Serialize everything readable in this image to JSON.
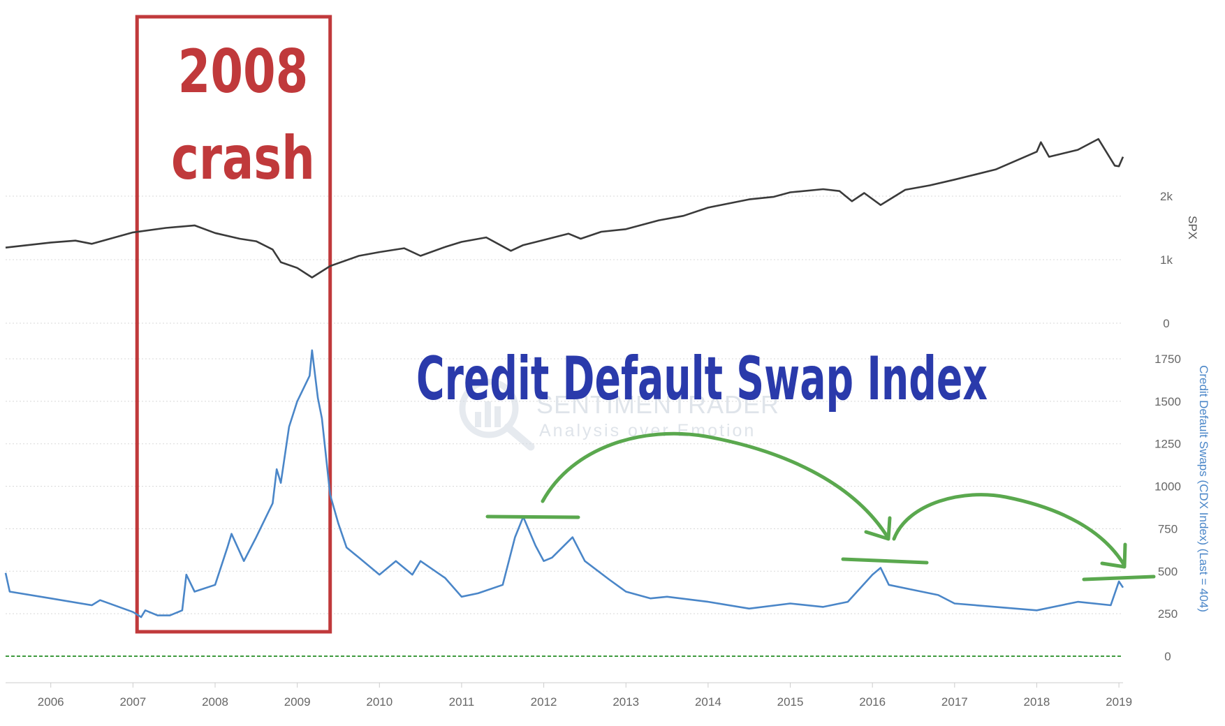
{
  "chart_data": {
    "type": "line",
    "watermark": {
      "name": "SENTIMENTRADER",
      "tagline": "Analysis over Emotion"
    },
    "annotations": {
      "crash_line1": "2008",
      "crash_line2": "crash",
      "cdx_title": "Credit Default Swap Index"
    },
    "x_axis": {
      "ticks": [
        "2006",
        "2007",
        "2008",
        "2009",
        "2010",
        "2011",
        "2012",
        "2013",
        "2014",
        "2015",
        "2016",
        "2017",
        "2018",
        "2019"
      ],
      "range": [
        2005.45,
        2019.05
      ]
    },
    "spx_axis": {
      "label": "SPX",
      "ticks": [
        "0",
        "1k",
        "2k"
      ],
      "range": [
        0,
        3000
      ]
    },
    "cdx_axis": {
      "label": "Credit Default Swaps (CDX Index) (Last = 404)",
      "ticks": [
        "0",
        "250",
        "500",
        "750",
        "1000",
        "1250",
        "1500",
        "1750"
      ],
      "range": [
        0,
        1750
      ]
    },
    "series": [
      {
        "name": "SPX",
        "color": "#3a3a3a",
        "x": [
          2005.45,
          2006.0,
          2006.3,
          2006.5,
          2007.0,
          2007.4,
          2007.75,
          2008.0,
          2008.3,
          2008.5,
          2008.7,
          2008.8,
          2009.0,
          2009.18,
          2009.4,
          2009.75,
          2010.0,
          2010.3,
          2010.5,
          2010.8,
          2011.0,
          2011.3,
          2011.6,
          2011.75,
          2012.0,
          2012.3,
          2012.45,
          2012.7,
          2013.0,
          2013.4,
          2013.7,
          2014.0,
          2014.5,
          2014.8,
          2015.0,
          2015.4,
          2015.6,
          2015.75,
          2015.9,
          2016.1,
          2016.4,
          2016.7,
          2017.0,
          2017.5,
          2018.0,
          2018.05,
          2018.15,
          2018.5,
          2018.75,
          2018.95,
          2019.0,
          2019.05
        ],
        "values": [
          1190,
          1270,
          1300,
          1250,
          1430,
          1500,
          1540,
          1420,
          1330,
          1290,
          1160,
          960,
          870,
          720,
          900,
          1060,
          1120,
          1180,
          1060,
          1200,
          1280,
          1350,
          1140,
          1230,
          1310,
          1410,
          1330,
          1440,
          1480,
          1620,
          1690,
          1820,
          1950,
          1990,
          2060,
          2110,
          2080,
          1920,
          2050,
          1860,
          2100,
          2170,
          2260,
          2420,
          2700,
          2850,
          2620,
          2730,
          2900,
          2480,
          2470,
          2620
        ]
      },
      {
        "name": "Credit Default Swaps (CDX Index)",
        "color": "#4a86c8",
        "x": [
          2005.45,
          2005.5,
          2006.0,
          2006.5,
          2006.6,
          2007.0,
          2007.1,
          2007.15,
          2007.3,
          2007.45,
          2007.6,
          2007.65,
          2007.75,
          2008.0,
          2008.15,
          2008.2,
          2008.35,
          2008.5,
          2008.7,
          2008.75,
          2008.8,
          2008.9,
          2009.0,
          2009.15,
          2009.18,
          2009.25,
          2009.3,
          2009.4,
          2009.5,
          2009.6,
          2009.75,
          2010.0,
          2010.2,
          2010.4,
          2010.5,
          2010.8,
          2011.0,
          2011.2,
          2011.5,
          2011.65,
          2011.75,
          2011.9,
          2012.0,
          2012.1,
          2012.35,
          2012.5,
          2012.8,
          2013.0,
          2013.3,
          2013.5,
          2014.0,
          2014.5,
          2015.0,
          2015.4,
          2015.7,
          2016.0,
          2016.1,
          2016.2,
          2016.5,
          2016.8,
          2017.0,
          2017.5,
          2018.0,
          2018.5,
          2018.9,
          2019.0,
          2019.05
        ],
        "values": [
          490,
          380,
          340,
          300,
          330,
          260,
          230,
          270,
          240,
          240,
          270,
          480,
          380,
          420,
          640,
          720,
          560,
          700,
          900,
          1100,
          1020,
          1350,
          1500,
          1650,
          1800,
          1520,
          1400,
          950,
          780,
          640,
          580,
          480,
          560,
          480,
          560,
          460,
          350,
          370,
          420,
          700,
          820,
          650,
          560,
          580,
          700,
          560,
          450,
          380,
          340,
          350,
          320,
          280,
          310,
          290,
          320,
          480,
          520,
          420,
          390,
          360,
          310,
          290,
          270,
          320,
          300,
          440,
          404
        ]
      },
      {
        "name": "zero line",
        "color": "#3e9a3e",
        "x": [
          2005.45,
          2019.05
        ],
        "values": [
          0,
          0
        ]
      }
    ],
    "highlight": {
      "x_start": 2007.05,
      "x_end": 2009.4,
      "label": "2008 crash"
    },
    "grid": true,
    "colors": {
      "box": "#c0393b",
      "title": "#2a3aab",
      "arrows": "#5aa84e",
      "axis_label": "#4a86c8"
    }
  }
}
